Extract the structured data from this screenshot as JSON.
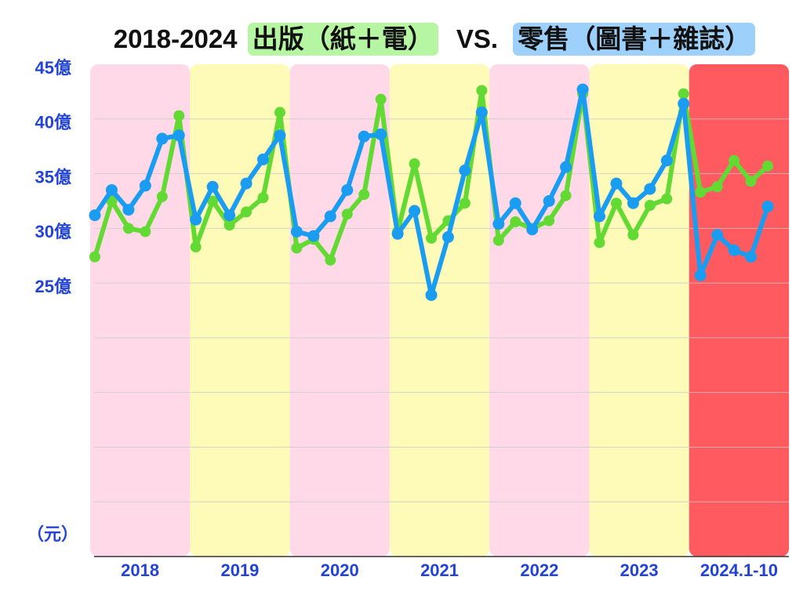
{
  "chart_data": {
    "type": "line",
    "title": {
      "prefix": "2018-2024",
      "separator": "VS."
    },
    "ylabel": "（元）",
    "ylim": [
      0,
      45
    ],
    "grid": true,
    "grid_step": 5,
    "y_ticks": [
      {
        "label": "45億",
        "value": 45
      },
      {
        "label": "40億",
        "value": 40
      },
      {
        "label": "35億",
        "value": 35
      },
      {
        "label": "30億",
        "value": 30
      },
      {
        "label": "25億",
        "value": 25
      }
    ],
    "years": [
      {
        "label": "2018",
        "band_color": "#ffd9e8"
      },
      {
        "label": "2019",
        "band_color": "#fdfbb7"
      },
      {
        "label": "2020",
        "band_color": "#ffd9e8"
      },
      {
        "label": "2021",
        "band_color": "#fdfbb7"
      },
      {
        "label": "2022",
        "band_color": "#ffd9e8"
      },
      {
        "label": "2023",
        "band_color": "#fdfbb7"
      },
      {
        "label": "2024.1-10",
        "band_color": "#ff5a5f"
      }
    ],
    "series": [
      {
        "name": "出版（紙＋電）",
        "color": "#63d934",
        "highlight": "#b6f6a2",
        "values": [
          [
            27.4,
            32.5,
            30.0,
            29.7,
            32.9,
            40.3
          ],
          [
            28.3,
            32.5,
            30.3,
            31.5,
            32.8,
            40.6
          ],
          [
            28.2,
            29.0,
            27.1,
            31.3,
            33.1,
            41.8
          ],
          [
            29.7,
            35.9,
            29.1,
            30.7,
            32.3,
            42.6
          ],
          [
            28.9,
            30.6,
            30.0,
            30.7,
            33.0,
            42.3
          ],
          [
            28.7,
            32.3,
            29.4,
            32.1,
            32.7,
            42.3
          ],
          [
            33.3,
            33.8,
            36.2,
            34.3,
            35.7
          ]
        ]
      },
      {
        "name": "零售（圖書＋雜誌）",
        "color": "#1a9cf0",
        "highlight": "#9dd0fa",
        "values": [
          [
            31.2,
            33.5,
            31.7,
            33.9,
            38.2,
            38.5
          ],
          [
            30.8,
            33.8,
            31.2,
            34.1,
            36.3,
            38.5
          ],
          [
            29.7,
            29.3,
            31.1,
            33.5,
            38.4,
            38.6
          ],
          [
            29.5,
            31.6,
            23.9,
            29.2,
            35.3,
            40.6
          ],
          [
            30.4,
            32.3,
            29.9,
            32.5,
            35.6,
            42.7
          ],
          [
            31.1,
            34.1,
            32.3,
            33.6,
            36.2,
            41.4
          ],
          [
            25.7,
            29.4,
            28.0,
            27.4,
            32.0
          ]
        ]
      }
    ],
    "colors": {
      "axis_text": "#2243d6",
      "title_text": "#111111",
      "grid": "#c8c8c8",
      "axis_line": "#333333"
    }
  }
}
